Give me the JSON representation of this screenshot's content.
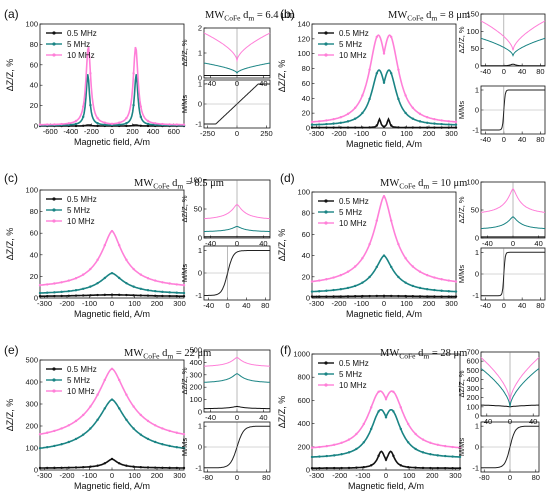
{
  "colors": {
    "s05": "#111111",
    "s5": "#1a8484",
    "s10": "#ff7fd8",
    "mh": "#222222"
  },
  "legend": [
    "0.5 MHz",
    "5 MHz",
    "10 MHz"
  ],
  "chart_data": [
    {
      "panel": "(a)",
      "title_prefix": "MW",
      "title_sub": "CoFe",
      "title_rest": " d",
      "title_sub2": "m",
      "title_value": " = 6.4 μm",
      "type": "line",
      "main": {
        "xlabel": "Magnetic field, A/m",
        "ylabel": "ΔZ/Z, %",
        "xlim": [
          -700,
          700
        ],
        "ylim": [
          0,
          100
        ],
        "xticks": [
          -600,
          -400,
          -200,
          0,
          200,
          400,
          600
        ],
        "yticks": [
          0,
          20,
          40,
          60,
          80,
          100
        ],
        "series": [
          {
            "name": "0.5 MHz",
            "peak": 1,
            "peak_x": 230,
            "width": 45,
            "base": 0
          },
          {
            "name": "5 MHz",
            "peak": 51,
            "peak_x": 235,
            "width": 35,
            "base": 0.5
          },
          {
            "name": "10 MHz",
            "peak": 78,
            "peak_x": 230,
            "width": 48,
            "base": 1
          }
        ]
      },
      "inset1": {
        "ylabel": "ΔZ/Z, %",
        "xlim": [
          -50,
          50
        ],
        "ylim": [
          0,
          2
        ],
        "xticks": [
          -40,
          0,
          40
        ],
        "yticks": [
          0,
          1,
          2
        ],
        "series": [
          {
            "name": "0.5 MHz",
            "center": 0.1,
            "edge": 0.1,
            "kind": "flat"
          },
          {
            "name": "5 MHz",
            "center": 0.2,
            "edge": 0.6,
            "kind": "dip"
          },
          {
            "name": "10 MHz",
            "center": 0.7,
            "edge": 1.8,
            "kind": "dip"
          }
        ]
      },
      "inset2": {
        "ylabel": "M/Ms",
        "xlim": [
          -280,
          280
        ],
        "ylim": [
          -1.2,
          1.2
        ],
        "xticks": [
          -250,
          0,
          250
        ],
        "yticks": [
          -1,
          0,
          1
        ],
        "loop": {
          "type": "linear",
          "hs": 180
        }
      }
    },
    {
      "panel": "(b)",
      "title_prefix": "MW",
      "title_sub": "CoFe",
      "title_rest": " d",
      "title_sub2": "m",
      "title_value": " = 8 μm",
      "type": "line",
      "main": {
        "xlabel": "Magnetic field, A/m",
        "ylabel": "ΔZ/Z, %",
        "xlim": [
          -320,
          320
        ],
        "ylim": [
          0,
          140
        ],
        "xticks": [
          -300,
          -200,
          -100,
          0,
          100,
          200,
          300
        ],
        "yticks": [
          0,
          20,
          40,
          60,
          80,
          100,
          120,
          140
        ],
        "series": [
          {
            "name": "0.5 MHz",
            "peak": 12,
            "peak_x": 20,
            "width": 12,
            "base": 0.5
          },
          {
            "name": "5 MHz",
            "peak": 78,
            "peak_x": 22,
            "width": 70,
            "base": 3
          },
          {
            "name": "10 MHz",
            "peak": 125,
            "peak_x": 25,
            "width": 85,
            "base": 5
          }
        ]
      },
      "inset1": {
        "ylabel": "ΔZ/Z, %",
        "xlim": [
          -50,
          90
        ],
        "ylim": [
          0,
          150
        ],
        "xticks": [
          -40,
          0,
          40,
          80
        ],
        "yticks": [
          0,
          50,
          100,
          150
        ],
        "series": [
          {
            "name": "0.5 MHz",
            "center": 5,
            "edge": 1,
            "kind": "bump",
            "x0": 20
          },
          {
            "name": "5 MHz",
            "center": 30,
            "edge": 80,
            "kind": "dip",
            "x0": 20
          },
          {
            "name": "10 MHz",
            "center": 45,
            "edge": 130,
            "kind": "dip",
            "x0": 20
          }
        ]
      },
      "inset2": {
        "ylabel": "M/Ms",
        "xlim": [
          -50,
          90
        ],
        "ylim": [
          -1.2,
          1.2
        ],
        "xticks": [
          -40,
          0,
          40,
          80
        ],
        "yticks": [
          -1,
          0,
          1
        ],
        "loop": {
          "type": "square",
          "hs": 3
        }
      }
    },
    {
      "panel": "(c)",
      "title_prefix": "MW",
      "title_sub": "CoFe",
      "title_rest": " d",
      "title_sub2": "m",
      "title_value": " = 8.5 μm",
      "type": "line",
      "main": {
        "xlabel": "Magnetic field, A/m",
        "ylabel": "ΔZ/Z, %",
        "xlim": [
          -320,
          320
        ],
        "ylim": [
          0,
          100
        ],
        "xticks": [
          -300,
          -200,
          -100,
          0,
          100,
          200,
          300
        ],
        "yticks": [
          0,
          20,
          40,
          60,
          80,
          100
        ],
        "series": [
          {
            "name": "0.5 MHz",
            "peak": 3,
            "peak_x": 0,
            "width": 200,
            "base": 1
          },
          {
            "name": "5 MHz",
            "peak": 23,
            "peak_x": 0,
            "width": 70,
            "base": 3
          },
          {
            "name": "10 MHz",
            "peak": 62,
            "peak_x": 0,
            "width": 65,
            "base": 8
          }
        ]
      },
      "inset1": {
        "ylabel": "ΔZ/Z, %",
        "xlim": [
          -50,
          50
        ],
        "ylim": [
          0,
          100
        ],
        "xticks": [
          -40,
          0,
          40
        ],
        "yticks": [
          0,
          50,
          100
        ],
        "series": [
          {
            "name": "0.5 MHz",
            "center": 2,
            "edge": 2,
            "kind": "flat"
          },
          {
            "name": "5 MHz",
            "center": 20,
            "edge": 10,
            "kind": "peak"
          },
          {
            "name": "10 MHz",
            "center": 58,
            "edge": 30,
            "kind": "peak"
          }
        ]
      },
      "inset2": {
        "ylabel": "M/Ms",
        "xlim": [
          -50,
          90
        ],
        "ylim": [
          -1.2,
          1.2
        ],
        "xticks": [
          -40,
          0,
          40,
          80
        ],
        "yticks": [
          -1,
          0,
          1
        ],
        "loop": {
          "type": "tanh",
          "hs": 12
        }
      }
    },
    {
      "panel": "(d)",
      "title_prefix": "MW",
      "title_sub": "CoFe",
      "title_rest": " d",
      "title_sub2": "m",
      "title_value": " = 10 μm",
      "type": "line",
      "main": {
        "xlabel": "Magnetic field, A/m",
        "ylabel": "ΔZ/Z, %",
        "xlim": [
          -320,
          320
        ],
        "ylim": [
          0,
          100
        ],
        "xticks": [
          -300,
          -200,
          -100,
          0,
          100,
          200,
          300
        ],
        "yticks": [
          0,
          20,
          40,
          60,
          80,
          100
        ],
        "series": [
          {
            "name": "0.5 MHz",
            "peak": 2,
            "peak_x": 0,
            "width": 200,
            "base": 1
          },
          {
            "name": "5 MHz",
            "peak": 40,
            "peak_x": 0,
            "width": 55,
            "base": 4
          },
          {
            "name": "10 MHz",
            "peak": 96,
            "peak_x": 0,
            "width": 60,
            "base": 10
          }
        ]
      },
      "inset1": {
        "ylabel": "ΔZ/Z, %",
        "xlim": [
          -50,
          50
        ],
        "ylim": [
          0,
          100
        ],
        "xticks": [
          -40,
          0,
          40
        ],
        "yticks": [
          0,
          50,
          100
        ],
        "series": [
          {
            "name": "0.5 MHz",
            "center": 2,
            "edge": 2,
            "kind": "flat"
          },
          {
            "name": "5 MHz",
            "center": 38,
            "edge": 14,
            "kind": "peak"
          },
          {
            "name": "10 MHz",
            "center": 88,
            "edge": 40,
            "kind": "peak"
          }
        ]
      },
      "inset2": {
        "ylabel": "M/Ms",
        "xlim": [
          -50,
          90
        ],
        "ylim": [
          -1.2,
          1.2
        ],
        "xticks": [
          -40,
          0,
          40,
          80
        ],
        "yticks": [
          -1,
          0,
          1
        ],
        "loop": {
          "type": "square",
          "hs": 3
        }
      }
    },
    {
      "panel": "(e)",
      "title_prefix": "MW",
      "title_sub": "CoFe",
      "title_rest": " d",
      "title_sub2": "m",
      "title_value": " = 22 μm",
      "type": "line",
      "main": {
        "xlabel": "Magnetic field, A/m",
        "ylabel": "ΔZ/Z, %",
        "xlim": [
          -320,
          320
        ],
        "ylim": [
          0,
          500
        ],
        "xticks": [
          -300,
          -200,
          -100,
          0,
          100,
          200,
          300
        ],
        "yticks": [
          0,
          100,
          200,
          300,
          400,
          500
        ],
        "series": [
          {
            "name": "0.5 MHz",
            "peak": 50,
            "peak_x": 0,
            "width": 35,
            "base": 8
          },
          {
            "name": "5 MHz",
            "peak": 320,
            "peak_x": 0,
            "width": 90,
            "base": 70
          },
          {
            "name": "10 MHz",
            "peak": 460,
            "peak_x": 0,
            "width": 95,
            "base": 120
          }
        ]
      },
      "inset1": {
        "ylabel": "ΔZ/Z, %",
        "xlim": [
          -50,
          50
        ],
        "ylim": [
          0,
          500
        ],
        "xticks": [
          -40,
          0,
          40
        ],
        "yticks": [
          0,
          100,
          200,
          300,
          400,
          500
        ],
        "series": [
          {
            "name": "0.5 MHz",
            "center": 45,
            "edge": 25,
            "kind": "peak"
          },
          {
            "name": "5 MHz",
            "center": 310,
            "edge": 230,
            "kind": "peak"
          },
          {
            "name": "10 MHz",
            "center": 440,
            "edge": 360,
            "kind": "peak"
          }
        ]
      },
      "inset2": {
        "ylabel": "M/Ms",
        "xlim": [
          -90,
          90
        ],
        "ylim": [
          -1.2,
          1.2
        ],
        "xticks": [
          -80,
          0,
          80
        ],
        "yticks": [
          -1,
          0,
          1
        ],
        "loop": {
          "type": "tanh",
          "hs": 18
        }
      }
    },
    {
      "panel": "(f)",
      "title_prefix": "MW",
      "title_sub": "CoFe",
      "title_rest": " d",
      "title_sub2": "m",
      "title_value": " = 28 μm",
      "type": "line",
      "main": {
        "xlabel": "Magnetic field, A/m",
        "ylabel": "ΔZ/Z, %",
        "xlim": [
          -320,
          320
        ],
        "ylim": [
          0,
          1000
        ],
        "xticks": [
          -300,
          -200,
          -100,
          0,
          100,
          200,
          300
        ],
        "yticks": [
          0,
          200,
          400,
          600,
          800,
          1000
        ],
        "series": [
          {
            "name": "0.5 MHz",
            "peak": 160,
            "peak_x": 20,
            "width": 35,
            "base": 15
          },
          {
            "name": "5 MHz",
            "peak": 520,
            "peak_x": 22,
            "width": 90,
            "base": 100
          },
          {
            "name": "10 MHz",
            "peak": 680,
            "peak_x": 25,
            "width": 110,
            "base": 170
          }
        ]
      },
      "inset1": {
        "ylabel": "ΔZ/Z, %",
        "xlim": [
          -50,
          50
        ],
        "ylim": [
          0,
          700
        ],
        "xticks": [
          -40,
          0,
          40
        ],
        "yticks": [
          0,
          100,
          200,
          300,
          400,
          500,
          600,
          700
        ],
        "series": [
          {
            "name": "0.5 MHz",
            "center": 100,
            "edge": 120,
            "kind": "dip"
          },
          {
            "name": "5 MHz",
            "center": 100,
            "edge": 520,
            "kind": "dip"
          },
          {
            "name": "10 MHz",
            "center": 160,
            "edge": 640,
            "kind": "dip"
          }
        ]
      },
      "inset2": {
        "ylabel": "M/Ms",
        "xlim": [
          -90,
          90
        ],
        "ylim": [
          -1.2,
          1.2
        ],
        "xticks": [
          -80,
          0,
          80
        ],
        "yticks": [
          -1,
          0,
          1
        ],
        "loop": {
          "type": "tanh",
          "hs": 16
        }
      }
    }
  ]
}
